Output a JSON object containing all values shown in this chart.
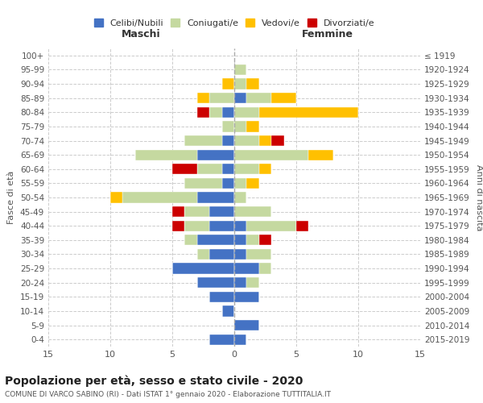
{
  "age_groups_bottom_to_top": [
    "0-4",
    "5-9",
    "10-14",
    "15-19",
    "20-24",
    "25-29",
    "30-34",
    "35-39",
    "40-44",
    "45-49",
    "50-54",
    "55-59",
    "60-64",
    "65-69",
    "70-74",
    "75-79",
    "80-84",
    "85-89",
    "90-94",
    "95-99",
    "100+"
  ],
  "birth_years_bottom_to_top": [
    "2015-2019",
    "2010-2014",
    "2005-2009",
    "2000-2004",
    "1995-1999",
    "1990-1994",
    "1985-1989",
    "1980-1984",
    "1975-1979",
    "1970-1974",
    "1965-1969",
    "1960-1964",
    "1955-1959",
    "1950-1954",
    "1945-1949",
    "1940-1944",
    "1935-1939",
    "1930-1934",
    "1925-1929",
    "1920-1924",
    "≤ 1919"
  ],
  "colors": {
    "celibe": "#4472c4",
    "coniugato": "#c5d9a0",
    "vedovo": "#ffc000",
    "divorziato": "#cc0000"
  },
  "maschi": {
    "celibe": [
      2,
      0,
      1,
      2,
      3,
      5,
      2,
      3,
      2,
      2,
      3,
      1,
      1,
      3,
      1,
      0,
      1,
      0,
      0,
      0,
      0
    ],
    "coniugato": [
      0,
      0,
      0,
      0,
      0,
      0,
      1,
      1,
      2,
      2,
      6,
      3,
      2,
      5,
      3,
      1,
      1,
      2,
      0,
      0,
      0
    ],
    "vedovo": [
      0,
      0,
      0,
      0,
      0,
      0,
      0,
      0,
      0,
      0,
      1,
      0,
      0,
      0,
      0,
      0,
      0,
      1,
      1,
      0,
      0
    ],
    "divorziato": [
      0,
      0,
      0,
      0,
      0,
      0,
      0,
      0,
      1,
      1,
      0,
      0,
      2,
      0,
      0,
      0,
      1,
      0,
      0,
      0,
      0
    ]
  },
  "femmine": {
    "nubile": [
      1,
      2,
      0,
      2,
      1,
      2,
      1,
      1,
      1,
      0,
      0,
      0,
      0,
      0,
      0,
      0,
      0,
      1,
      0,
      0,
      0
    ],
    "coniugata": [
      0,
      0,
      0,
      0,
      1,
      1,
      2,
      1,
      4,
      3,
      1,
      1,
      2,
      6,
      2,
      1,
      2,
      2,
      1,
      1,
      0
    ],
    "vedova": [
      0,
      0,
      0,
      0,
      0,
      0,
      0,
      0,
      0,
      0,
      0,
      1,
      1,
      2,
      1,
      1,
      8,
      2,
      1,
      0,
      0
    ],
    "divorziata": [
      0,
      0,
      0,
      0,
      0,
      0,
      0,
      1,
      1,
      0,
      0,
      0,
      0,
      0,
      1,
      0,
      0,
      0,
      0,
      0,
      0
    ]
  },
  "title": "Popolazione per età, sesso e stato civile - 2020",
  "subtitle": "COMUNE DI VARCO SABINO (RI) - Dati ISTAT 1° gennaio 2020 - Elaborazione TUTTITALIA.IT",
  "xlabel_left": "Maschi",
  "xlabel_right": "Femmine",
  "ylabel_left": "Fasce di età",
  "ylabel_right": "Anni di nascita",
  "legend_labels": [
    "Celibi/Nubili",
    "Coniugati/e",
    "Vedovi/e",
    "Divorziati/e"
  ],
  "xlim": 15,
  "background_color": "#ffffff"
}
